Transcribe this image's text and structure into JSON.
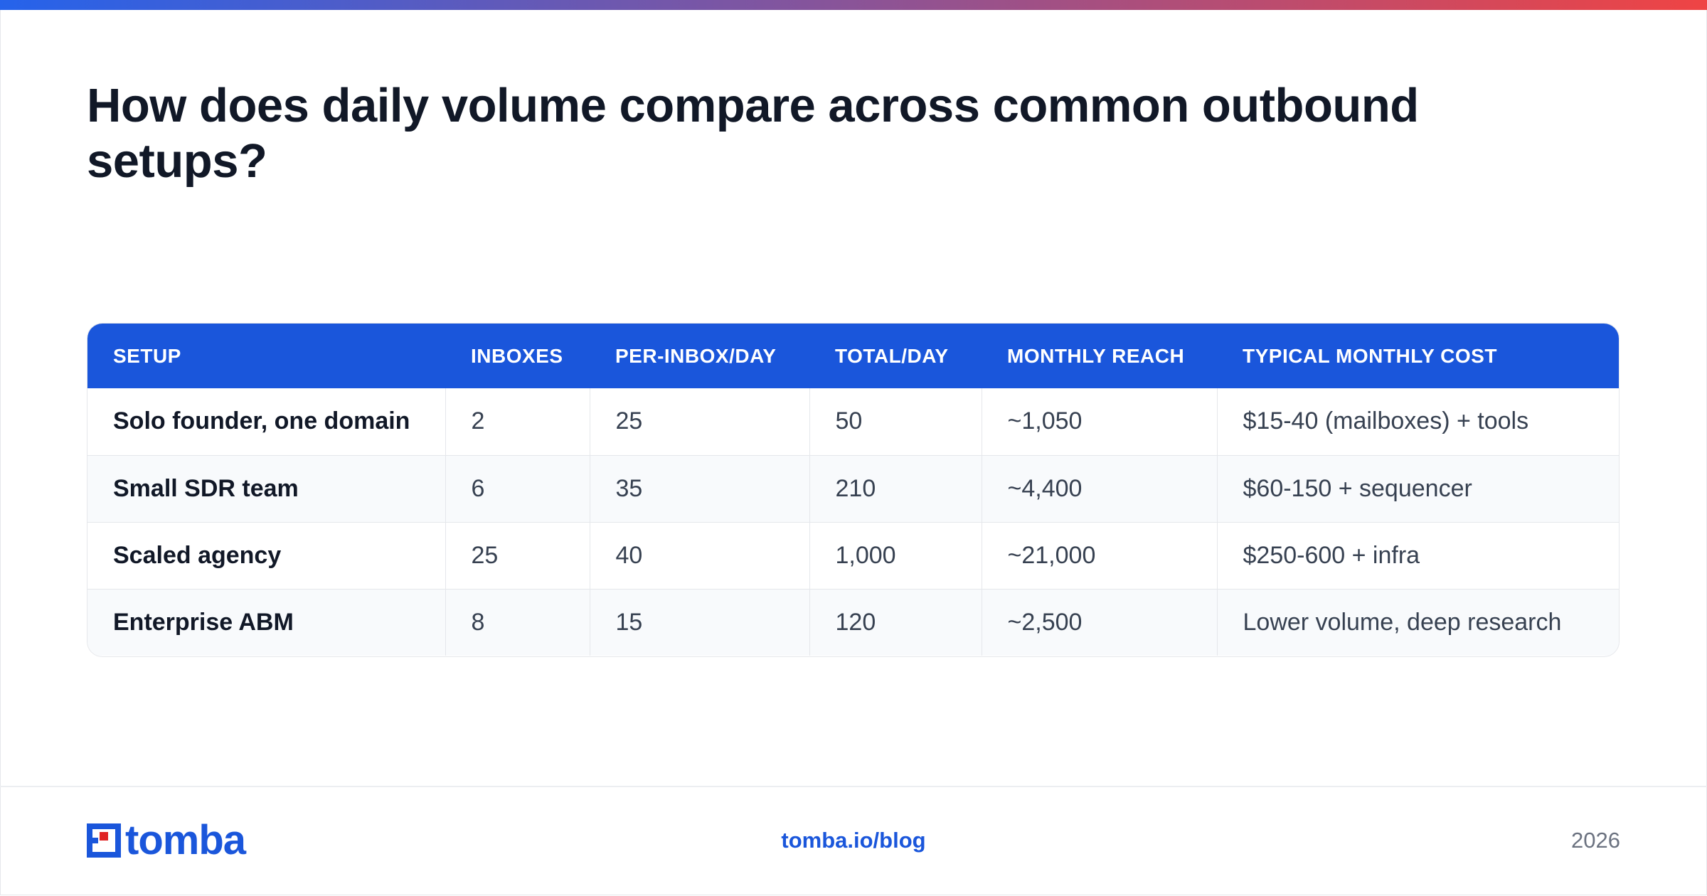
{
  "title": "How does daily volume compare across common outbound setups?",
  "colors": {
    "brand_blue": "#1a56db",
    "accent_gradient_start": "#2563eb",
    "accent_gradient_end": "#ef4444",
    "logo_red": "#e02424"
  },
  "table": {
    "headers": [
      "SETUP",
      "INBOXES",
      "PER-INBOX/DAY",
      "TOTAL/DAY",
      "MONTHLY REACH",
      "TYPICAL MONTHLY COST"
    ],
    "rows": [
      [
        "Solo founder, one domain",
        "2",
        "25",
        "50",
        "~1,050",
        "$15-40 (mailboxes) + tools"
      ],
      [
        "Small SDR team",
        "6",
        "35",
        "210",
        "~4,400",
        "$60-150 + sequencer"
      ],
      [
        "Scaled agency",
        "25",
        "40",
        "1,000",
        "~21,000",
        "$250-600 + infra"
      ],
      [
        "Enterprise ABM",
        "8",
        "15",
        "120",
        "~2,500",
        "Lower volume, deep research"
      ]
    ]
  },
  "footer": {
    "logo_text": "tomba",
    "logo_icon": "tomba-logo-icon",
    "url": "tomba.io/blog",
    "year": "2026"
  }
}
